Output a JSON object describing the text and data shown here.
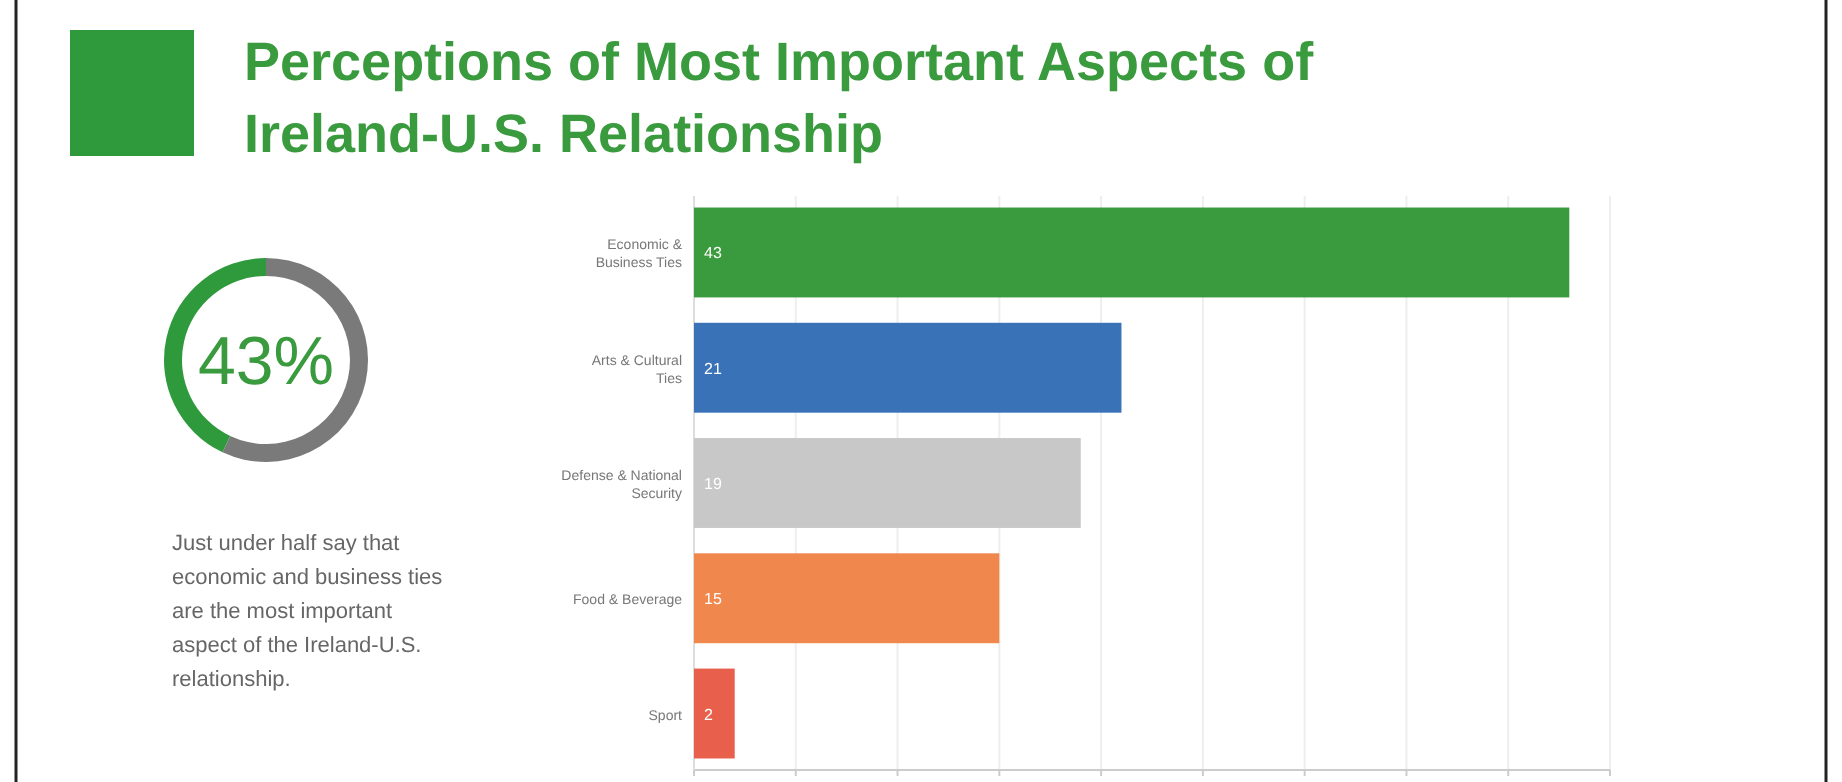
{
  "chart_data": [
    {
      "type": "donut",
      "title": "Perceptions of Most Important Aspects of Ireland-U.S. Relationship",
      "categories": [
        null,
        null
      ],
      "values": [
        43,
        57
      ],
      "colors": [
        "#2e9a3c",
        "#7a7a7a"
      ],
      "annotations": [
        "43%",
        "Just under half say that economic and business ties are the most important aspect of the Ireland-U.S. relationship."
      ]
    },
    {
      "type": "bar",
      "orientation": "horizontal",
      "categories": [
        "Economic & Business Ties",
        "Arts & Cultural Ties",
        "Defense & National Security",
        "Food & Beverage",
        "Sport"
      ],
      "values": [
        43,
        21,
        19,
        15,
        2
      ],
      "colors": [
        "#3a9a3e",
        "#3a72b8",
        "#c8c8c8",
        "#f0884e",
        "#e8604c"
      ],
      "data_labels": true,
      "xlim": [
        0,
        45
      ],
      "xticks": [
        {
          "value": 0,
          "label": null
        },
        {
          "value": 5,
          "label": null
        },
        {
          "value": 10,
          "label": null
        },
        {
          "value": 15,
          "label": null
        },
        {
          "value": 20,
          "label": null
        },
        {
          "value": 25,
          "label": null
        },
        {
          "value": 30,
          "label": null
        },
        {
          "value": 35,
          "label": null
        },
        {
          "value": 40,
          "label": null
        },
        {
          "value": 45,
          "label": null
        }
      ],
      "grid": "x",
      "tick_labels": "y"
    }
  ]
}
